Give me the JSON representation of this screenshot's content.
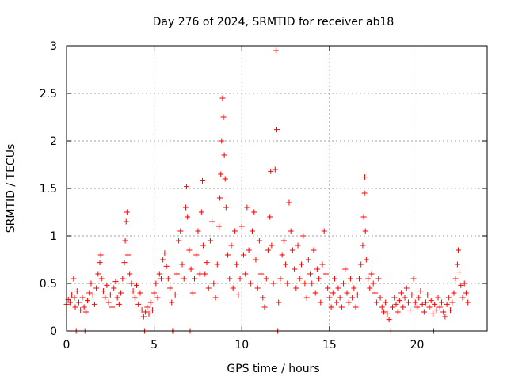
{
  "chart_data": {
    "type": "scatter",
    "title": "Day 276 of 2024, SRMTID for receiver ab18",
    "xlabel": "GPS time / hours",
    "ylabel": "SRMTID / TECUs",
    "xlim": [
      0,
      24
    ],
    "ylim": [
      0,
      3
    ],
    "xticks": [
      0,
      5,
      10,
      15,
      20
    ],
    "xtick_labels": [
      "0",
      "5",
      "10",
      "15",
      "20"
    ],
    "yticks": [
      0,
      0.5,
      1,
      1.5,
      2,
      2.5,
      3
    ],
    "ytick_labels": [
      "0",
      "0.5",
      "1",
      "1.5",
      "2",
      "2.5",
      "3"
    ],
    "grid": true,
    "marker": "+",
    "color": "#ff0000",
    "series": [
      {
        "name": "SRMTID",
        "points": [
          [
            0.0,
            0.28
          ],
          [
            0.1,
            0.33
          ],
          [
            0.2,
            0.3
          ],
          [
            0.3,
            0.38
          ],
          [
            0.4,
            0.55
          ],
          [
            0.45,
            0.35
          ],
          [
            0.5,
            0.25
          ],
          [
            0.55,
            0.0
          ],
          [
            0.6,
            0.42
          ],
          [
            0.7,
            0.3
          ],
          [
            0.8,
            0.22
          ],
          [
            0.9,
            0.35
          ],
          [
            1.0,
            0.25
          ],
          [
            1.05,
            0.0
          ],
          [
            1.1,
            0.2
          ],
          [
            1.2,
            0.32
          ],
          [
            1.3,
            0.4
          ],
          [
            1.4,
            0.5
          ],
          [
            1.5,
            0.38
          ],
          [
            1.6,
            0.28
          ],
          [
            1.7,
            0.45
          ],
          [
            1.8,
            0.6
          ],
          [
            1.9,
            0.72
          ],
          [
            1.95,
            0.8
          ],
          [
            2.0,
            0.55
          ],
          [
            2.1,
            0.42
          ],
          [
            2.2,
            0.35
          ],
          [
            2.3,
            0.48
          ],
          [
            2.4,
            0.3
          ],
          [
            2.5,
            0.38
          ],
          [
            2.6,
            0.25
          ],
          [
            2.7,
            0.45
          ],
          [
            2.8,
            0.52
          ],
          [
            2.9,
            0.35
          ],
          [
            3.0,
            0.28
          ],
          [
            3.1,
            0.4
          ],
          [
            3.2,
            0.55
          ],
          [
            3.3,
            0.72
          ],
          [
            3.35,
            0.95
          ],
          [
            3.4,
            1.15
          ],
          [
            3.45,
            1.25
          ],
          [
            3.5,
            0.8
          ],
          [
            3.6,
            0.6
          ],
          [
            3.7,
            0.5
          ],
          [
            3.8,
            0.42
          ],
          [
            3.9,
            0.35
          ],
          [
            4.0,
            0.48
          ],
          [
            4.1,
            0.28
          ],
          [
            4.2,
            0.4
          ],
          [
            4.3,
            0.22
          ],
          [
            4.4,
            0.15
          ],
          [
            4.45,
            0.0
          ],
          [
            4.5,
            0.2
          ],
          [
            4.6,
            0.25
          ],
          [
            4.7,
            0.18
          ],
          [
            4.8,
            0.3
          ],
          [
            4.9,
            0.22
          ],
          [
            5.0,
            0.4
          ],
          [
            5.1,
            0.5
          ],
          [
            5.2,
            0.35
          ],
          [
            5.3,
            0.6
          ],
          [
            5.4,
            0.55
          ],
          [
            5.5,
            0.75
          ],
          [
            5.6,
            0.82
          ],
          [
            5.7,
            0.68
          ],
          [
            5.8,
            0.55
          ],
          [
            5.9,
            0.45
          ],
          [
            6.0,
            0.3
          ],
          [
            6.05,
            0.0
          ],
          [
            6.1,
            0.0
          ],
          [
            6.2,
            0.38
          ],
          [
            6.3,
            0.6
          ],
          [
            6.4,
            0.95
          ],
          [
            6.5,
            1.05
          ],
          [
            6.6,
            0.7
          ],
          [
            6.7,
            0.55
          ],
          [
            6.8,
            1.3
          ],
          [
            6.85,
            1.52
          ],
          [
            6.9,
            1.2
          ],
          [
            7.0,
            0.85
          ],
          [
            7.05,
            0.0
          ],
          [
            7.1,
            0.65
          ],
          [
            7.2,
            0.4
          ],
          [
            7.3,
            0.55
          ],
          [
            7.4,
            0.8
          ],
          [
            7.5,
            1.05
          ],
          [
            7.6,
            0.6
          ],
          [
            7.7,
            1.25
          ],
          [
            7.75,
            1.58
          ],
          [
            7.8,
            0.9
          ],
          [
            7.9,
            0.6
          ],
          [
            8.0,
            0.72
          ],
          [
            8.1,
            0.45
          ],
          [
            8.2,
            0.95
          ],
          [
            8.3,
            1.15
          ],
          [
            8.4,
            0.5
          ],
          [
            8.5,
            0.35
          ],
          [
            8.6,
            0.7
          ],
          [
            8.7,
            1.1
          ],
          [
            8.75,
            1.4
          ],
          [
            8.8,
            1.65
          ],
          [
            8.85,
            2.0
          ],
          [
            8.9,
            2.45
          ],
          [
            8.95,
            2.25
          ],
          [
            9.0,
            1.85
          ],
          [
            9.05,
            1.6
          ],
          [
            9.1,
            1.3
          ],
          [
            9.2,
            0.8
          ],
          [
            9.3,
            0.55
          ],
          [
            9.4,
            0.9
          ],
          [
            9.5,
            0.45
          ],
          [
            9.6,
            1.05
          ],
          [
            9.7,
            0.7
          ],
          [
            9.8,
            0.38
          ],
          [
            9.9,
            0.55
          ],
          [
            10.0,
            1.1
          ],
          [
            10.1,
            0.8
          ],
          [
            10.2,
            0.6
          ],
          [
            10.3,
            1.3
          ],
          [
            10.4,
            0.85
          ],
          [
            10.5,
            0.5
          ],
          [
            10.6,
            1.05
          ],
          [
            10.7,
            1.25
          ],
          [
            10.8,
            0.75
          ],
          [
            10.9,
            0.45
          ],
          [
            11.0,
            0.95
          ],
          [
            11.1,
            0.6
          ],
          [
            11.2,
            0.35
          ],
          [
            11.3,
            0.25
          ],
          [
            11.4,
            0.55
          ],
          [
            11.5,
            0.85
          ],
          [
            11.6,
            1.2
          ],
          [
            11.65,
            1.68
          ],
          [
            11.7,
            0.9
          ],
          [
            11.8,
            0.5
          ],
          [
            11.9,
            1.7
          ],
          [
            11.95,
            2.95
          ],
          [
            12.0,
            2.12
          ],
          [
            12.05,
            0.0
          ],
          [
            12.1,
            0.3
          ],
          [
            12.2,
            0.55
          ],
          [
            12.3,
            0.8
          ],
          [
            12.4,
            0.95
          ],
          [
            12.5,
            0.7
          ],
          [
            12.6,
            0.5
          ],
          [
            12.7,
            1.35
          ],
          [
            12.8,
            1.05
          ],
          [
            12.9,
            0.85
          ],
          [
            13.0,
            0.65
          ],
          [
            13.1,
            0.45
          ],
          [
            13.2,
            0.9
          ],
          [
            13.3,
            0.55
          ],
          [
            13.4,
            0.7
          ],
          [
            13.5,
            1.0
          ],
          [
            13.6,
            0.5
          ],
          [
            13.7,
            0.35
          ],
          [
            13.8,
            0.75
          ],
          [
            13.9,
            0.6
          ],
          [
            14.0,
            0.5
          ],
          [
            14.1,
            0.85
          ],
          [
            14.2,
            0.4
          ],
          [
            14.3,
            0.65
          ],
          [
            14.4,
            0.55
          ],
          [
            14.5,
            0.3
          ],
          [
            14.6,
            0.7
          ],
          [
            14.7,
            1.05
          ],
          [
            14.8,
            0.6
          ],
          [
            14.9,
            0.45
          ],
          [
            15.0,
            0.35
          ],
          [
            15.1,
            0.25
          ],
          [
            15.2,
            0.4
          ],
          [
            15.3,
            0.55
          ],
          [
            15.4,
            0.3
          ],
          [
            15.5,
            0.45
          ],
          [
            15.6,
            0.35
          ],
          [
            15.7,
            0.25
          ],
          [
            15.8,
            0.5
          ],
          [
            15.9,
            0.65
          ],
          [
            16.0,
            0.4
          ],
          [
            16.1,
            0.3
          ],
          [
            16.2,
            0.55
          ],
          [
            16.3,
            0.35
          ],
          [
            16.4,
            0.45
          ],
          [
            16.5,
            0.25
          ],
          [
            16.6,
            0.38
          ],
          [
            16.7,
            0.55
          ],
          [
            16.8,
            0.7
          ],
          [
            16.9,
            0.9
          ],
          [
            16.95,
            1.2
          ],
          [
            17.0,
            1.45
          ],
          [
            17.02,
            1.62
          ],
          [
            17.05,
            1.05
          ],
          [
            17.1,
            0.75
          ],
          [
            17.2,
            0.55
          ],
          [
            17.3,
            0.45
          ],
          [
            17.4,
            0.6
          ],
          [
            17.5,
            0.5
          ],
          [
            17.6,
            0.4
          ],
          [
            17.7,
            0.3
          ],
          [
            17.8,
            0.55
          ],
          [
            17.9,
            0.35
          ],
          [
            18.0,
            0.25
          ],
          [
            18.1,
            0.2
          ],
          [
            18.2,
            0.3
          ],
          [
            18.3,
            0.18
          ],
          [
            18.4,
            0.12
          ],
          [
            18.5,
            0.0
          ],
          [
            18.6,
            0.25
          ],
          [
            18.7,
            0.35
          ],
          [
            18.8,
            0.28
          ],
          [
            18.9,
            0.2
          ],
          [
            19.0,
            0.32
          ],
          [
            19.1,
            0.4
          ],
          [
            19.2,
            0.25
          ],
          [
            19.3,
            0.35
          ],
          [
            19.4,
            0.45
          ],
          [
            19.5,
            0.3
          ],
          [
            19.6,
            0.22
          ],
          [
            19.7,
            0.38
          ],
          [
            19.8,
            0.55
          ],
          [
            19.9,
            0.3
          ],
          [
            20.0,
            0.25
          ],
          [
            20.1,
            0.35
          ],
          [
            20.2,
            0.42
          ],
          [
            20.3,
            0.28
          ],
          [
            20.4,
            0.2
          ],
          [
            20.5,
            0.3
          ],
          [
            20.6,
            0.38
          ],
          [
            20.7,
            0.25
          ],
          [
            20.8,
            0.32
          ],
          [
            20.9,
            0.18
          ],
          [
            20.95,
            0.0
          ],
          [
            21.0,
            0.28
          ],
          [
            21.1,
            0.22
          ],
          [
            21.2,
            0.35
          ],
          [
            21.3,
            0.25
          ],
          [
            21.4,
            0.3
          ],
          [
            21.5,
            0.2
          ],
          [
            21.6,
            0.15
          ],
          [
            21.7,
            0.28
          ],
          [
            21.8,
            0.35
          ],
          [
            21.9,
            0.22
          ],
          [
            22.0,
            0.3
          ],
          [
            22.1,
            0.4
          ],
          [
            22.2,
            0.55
          ],
          [
            22.3,
            0.7
          ],
          [
            22.35,
            0.85
          ],
          [
            22.4,
            0.62
          ],
          [
            22.5,
            0.48
          ],
          [
            22.6,
            0.35
          ],
          [
            22.7,
            0.5
          ],
          [
            22.8,
            0.4
          ],
          [
            22.9,
            0.3
          ]
        ]
      }
    ]
  }
}
